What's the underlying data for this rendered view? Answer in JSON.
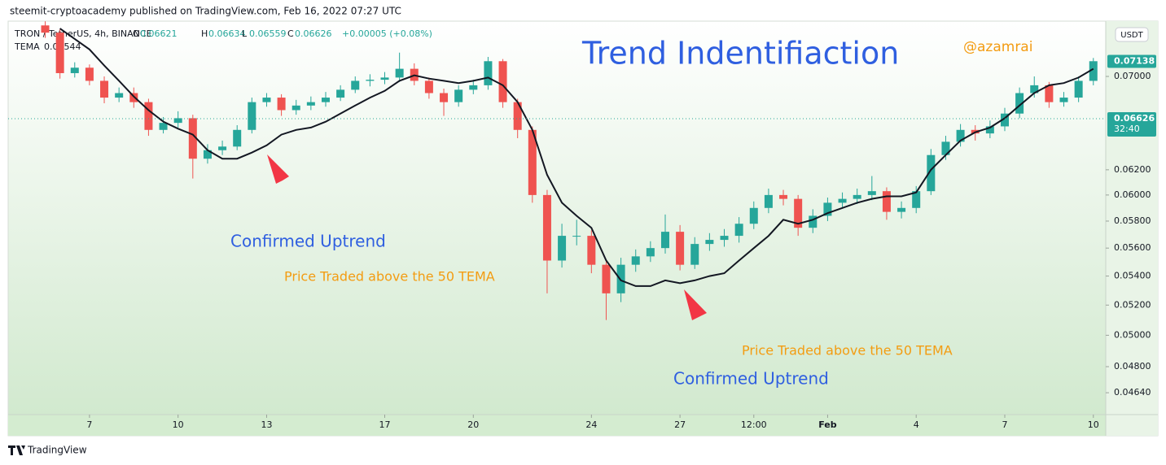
{
  "header": {
    "published": "steemit-cryptoacademy published on TradingView.com, Feb 16, 2022 07:27 UTC"
  },
  "legend": {
    "symbol": "TRON / TetherUS, 4h, BINANCE",
    "ohlc": [
      {
        "key": "O",
        "value": "0.06621"
      },
      {
        "key": "H",
        "value": "0.06634"
      },
      {
        "key": "L",
        "value": "0.06559"
      },
      {
        "key": "C",
        "value": "0.06626"
      }
    ],
    "change": "+0.00005 (+0.08%)",
    "indicator_value": "0.06544"
  },
  "currency_button": "USDT",
  "footer": {
    "brand": "TradingView"
  },
  "chart_data": {
    "type": "candlestick",
    "x": [
      5.5,
      6,
      6.5,
      7,
      7.5,
      8,
      8.5,
      9,
      9.5,
      10,
      10.5,
      11,
      11.5,
      12,
      12.5,
      13,
      13.5,
      14,
      14.5,
      15,
      15.5,
      16,
      16.5,
      17,
      17.5,
      18,
      18.5,
      19,
      19.5,
      20,
      20.5,
      21,
      21.5,
      22,
      22.5,
      23,
      23.5,
      24,
      24.5,
      25,
      25.5,
      26,
      26.5,
      27,
      27.5,
      28,
      28.5,
      29,
      29.5,
      30,
      30.5,
      31,
      31.5,
      32,
      32.5,
      33,
      33.5,
      34,
      34.5,
      35,
      35.5,
      36,
      36.5,
      37,
      37.5,
      38,
      38.5,
      39,
      39.5,
      40,
      40.5,
      41
    ],
    "open": [
      0.0748,
      0.0741,
      0.0703,
      0.0708,
      0.0696,
      0.0681,
      0.0685,
      0.0677,
      0.0653,
      0.0659,
      0.0663,
      0.0629,
      0.0636,
      0.0639,
      0.0653,
      0.0677,
      0.0681,
      0.067,
      0.0674,
      0.0677,
      0.0681,
      0.0688,
      0.0696,
      0.0697,
      0.0699,
      0.0707,
      0.0696,
      0.0685,
      0.0677,
      0.0688,
      0.0692,
      0.0714,
      0.0677,
      0.0653,
      0.06,
      0.0551,
      0.0569,
      0.0569,
      0.0548,
      0.0528,
      0.0548,
      0.0554,
      0.056,
      0.0572,
      0.0548,
      0.0563,
      0.0566,
      0.0569,
      0.0578,
      0.059,
      0.06,
      0.0597,
      0.0575,
      0.0584,
      0.0594,
      0.0597,
      0.06,
      0.0603,
      0.0587,
      0.059,
      0.0603,
      0.0632,
      0.0643,
      0.0653,
      0.065,
      0.0656,
      0.0667,
      0.0685,
      0.0692,
      0.0677,
      0.0681,
      0.0696
    ],
    "high": [
      0.0752,
      0.0744,
      0.0713,
      0.0711,
      0.07,
      0.069,
      0.069,
      0.068,
      0.0664,
      0.0669,
      0.0666,
      0.0641,
      0.0644,
      0.0657,
      0.0681,
      0.0685,
      0.0684,
      0.0679,
      0.0682,
      0.0686,
      0.0692,
      0.07,
      0.0702,
      0.0704,
      0.0722,
      0.0712,
      0.0699,
      0.0689,
      0.0692,
      0.0697,
      0.0718,
      0.0716,
      0.068,
      0.0656,
      0.0604,
      0.0578,
      0.0581,
      0.0573,
      0.0552,
      0.0553,
      0.0559,
      0.0565,
      0.0585,
      0.0577,
      0.0568,
      0.0571,
      0.0574,
      0.0583,
      0.0595,
      0.0605,
      0.0604,
      0.06,
      0.0589,
      0.0598,
      0.0602,
      0.0605,
      0.0615,
      0.0606,
      0.0595,
      0.0607,
      0.0637,
      0.0648,
      0.0658,
      0.0657,
      0.0661,
      0.0672,
      0.069,
      0.07,
      0.0695,
      0.0686,
      0.07,
      0.0717
    ],
    "low": [
      0.0736,
      0.0698,
      0.0699,
      0.0692,
      0.0676,
      0.0677,
      0.0672,
      0.0648,
      0.065,
      0.0655,
      0.0613,
      0.0625,
      0.0632,
      0.0636,
      0.065,
      0.0673,
      0.0665,
      0.0666,
      0.067,
      0.0673,
      0.0678,
      0.0685,
      0.0691,
      0.0693,
      0.0695,
      0.0692,
      0.068,
      0.0665,
      0.0673,
      0.0684,
      0.0688,
      0.0672,
      0.0646,
      0.0594,
      0.0528,
      0.0546,
      0.0562,
      0.0542,
      0.051,
      0.0522,
      0.0543,
      0.055,
      0.0556,
      0.0544,
      0.0545,
      0.0558,
      0.0561,
      0.0564,
      0.0574,
      0.0586,
      0.0592,
      0.0569,
      0.0571,
      0.058,
      0.059,
      0.0593,
      0.0596,
      0.0581,
      0.0582,
      0.0586,
      0.06,
      0.0628,
      0.0639,
      0.0644,
      0.0646,
      0.0652,
      0.0663,
      0.0681,
      0.0672,
      0.0673,
      0.0677,
      0.0692
    ],
    "close": [
      0.0741,
      0.0703,
      0.0708,
      0.0696,
      0.0681,
      0.0685,
      0.0677,
      0.0653,
      0.0659,
      0.0663,
      0.0629,
      0.0636,
      0.0639,
      0.0653,
      0.0677,
      0.0681,
      0.067,
      0.0674,
      0.0677,
      0.0681,
      0.0688,
      0.0696,
      0.0697,
      0.0699,
      0.0707,
      0.0696,
      0.0685,
      0.0677,
      0.0688,
      0.0692,
      0.0714,
      0.0677,
      0.0653,
      0.06,
      0.0551,
      0.0569,
      0.0569,
      0.0548,
      0.0528,
      0.0548,
      0.0554,
      0.056,
      0.0572,
      0.0548,
      0.0563,
      0.0566,
      0.0569,
      0.0578,
      0.059,
      0.06,
      0.0597,
      0.0575,
      0.0584,
      0.0594,
      0.0597,
      0.06,
      0.0603,
      0.0587,
      0.059,
      0.0603,
      0.0632,
      0.0643,
      0.0653,
      0.065,
      0.0656,
      0.0667,
      0.0685,
      0.0692,
      0.0677,
      0.0681,
      0.0696,
      0.0714
    ],
    "up_color": "#26a69a",
    "down_color": "#ef5350",
    "series": [
      {
        "name": "TEMA",
        "color": "#131722",
        "values": [
          null,
          0.0745,
          0.0735,
          0.0725,
          0.071,
          0.0696,
          0.0682,
          0.067,
          0.066,
          0.0654,
          0.0649,
          0.0636,
          0.0629,
          0.0629,
          0.0634,
          0.064,
          0.0649,
          0.0653,
          0.0655,
          0.066,
          0.0667,
          0.0674,
          0.0681,
          0.0687,
          0.0696,
          0.0701,
          0.0698,
          0.0696,
          0.0694,
          0.0696,
          0.0699,
          0.0692,
          0.0677,
          0.0653,
          0.0616,
          0.0594,
          0.0584,
          0.0575,
          0.0551,
          0.0537,
          0.0533,
          0.0533,
          0.0537,
          0.0535,
          0.0537,
          0.054,
          0.0542,
          0.0551,
          0.056,
          0.0569,
          0.0581,
          0.0578,
          0.0581,
          0.0586,
          0.059,
          0.0594,
          0.0597,
          0.0599,
          0.0599,
          0.0602,
          0.062,
          0.0632,
          0.0644,
          0.0651,
          0.0655,
          0.0663,
          0.0674,
          0.0685,
          0.0692,
          0.0694,
          0.0699,
          0.0707
        ]
      }
    ],
    "log_scale": true,
    "ylim": [
      0.0451,
      0.0749
    ],
    "yticks": [
      {
        "value": 0.07,
        "label": "0.07000"
      },
      {
        "value": 0.062,
        "label": "0.06200"
      },
      {
        "value": 0.06,
        "label": "0.06000"
      },
      {
        "value": 0.058,
        "label": "0.05800"
      },
      {
        "value": 0.056,
        "label": "0.05600"
      },
      {
        "value": 0.054,
        "label": "0.05400"
      },
      {
        "value": 0.052,
        "label": "0.05200"
      },
      {
        "value": 0.05,
        "label": "0.05000"
      },
      {
        "value": 0.048,
        "label": "0.04800"
      },
      {
        "value": 0.0464,
        "label": "0.04640"
      }
    ],
    "xlim": [
      4.3,
      41.42
    ],
    "xticks": [
      7,
      10,
      13,
      17,
      20,
      24,
      27,
      {
        "value": 29.5,
        "label": "12:00"
      },
      {
        "value": 32,
        "label": "Feb"
      },
      {
        "value": 35,
        "label": "4"
      },
      {
        "value": 38,
        "label": "7"
      },
      {
        "value": 41,
        "label": "10"
      }
    ],
    "last_price": {
      "value": 0.06626,
      "label": "0.06626",
      "countdown": "32:40",
      "color": "#26a69a"
    },
    "high_marker": {
      "value": 0.07138,
      "label": "0.07138",
      "color": "#26a69a"
    },
    "title": "Trend Indentifiaction",
    "handle": "@azamrai",
    "notes": [
      "Confirmed Uptrend",
      "Price Traded above the 50 TEMA",
      "Price Traded above the 50 TEMA",
      "Confirmed Uptrend"
    ]
  }
}
